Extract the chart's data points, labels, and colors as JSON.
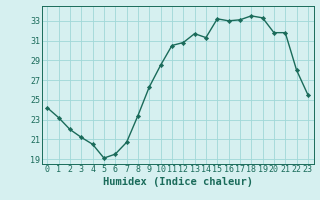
{
  "x": [
    0,
    1,
    2,
    3,
    4,
    5,
    6,
    7,
    8,
    9,
    10,
    11,
    12,
    13,
    14,
    15,
    16,
    17,
    18,
    19,
    20,
    21,
    22,
    23
  ],
  "y": [
    24.2,
    23.2,
    22.0,
    21.2,
    20.5,
    19.1,
    19.5,
    20.7,
    23.4,
    26.3,
    28.5,
    30.5,
    30.8,
    31.7,
    31.3,
    33.2,
    33.0,
    33.1,
    33.5,
    33.3,
    31.8,
    31.8,
    28.0,
    25.5
  ],
  "bg_color": "#d6f0f0",
  "line_color": "#1a6b5a",
  "marker_color": "#1a6b5a",
  "grid_color": "#a0d8d8",
  "xlabel": "Humidex (Indice chaleur)",
  "ylim": [
    18.5,
    34.5
  ],
  "xlim": [
    -0.5,
    23.5
  ],
  "yticks": [
    19,
    21,
    23,
    25,
    27,
    29,
    31,
    33
  ],
  "xticks": [
    0,
    1,
    2,
    3,
    4,
    5,
    6,
    7,
    8,
    9,
    10,
    11,
    12,
    13,
    14,
    15,
    16,
    17,
    18,
    19,
    20,
    21,
    22,
    23
  ],
  "xtick_labels": [
    "0",
    "1",
    "2",
    "3",
    "4",
    "5",
    "6",
    "7",
    "8",
    "9",
    "10",
    "11",
    "12",
    "13",
    "14",
    "15",
    "16",
    "17",
    "18",
    "19",
    "20",
    "21",
    "22",
    "23"
  ],
  "font_color": "#1a6b5a",
  "tick_fontsize": 6.0,
  "label_fontsize": 7.5
}
